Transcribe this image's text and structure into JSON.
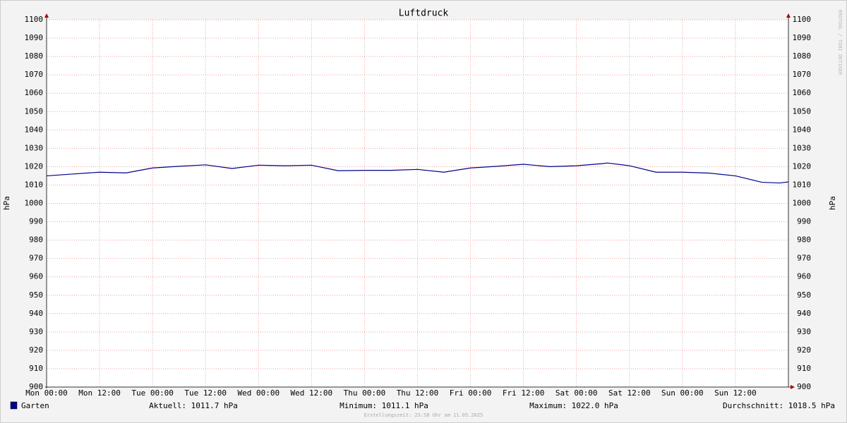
{
  "chart_data": {
    "type": "line",
    "title": "Luftdruck",
    "y_label": "hPa",
    "y2_label": "hPa",
    "x": [
      0,
      6,
      12,
      18,
      24,
      30,
      36,
      42,
      48,
      54,
      60,
      66,
      72,
      78,
      84,
      90,
      96,
      102,
      108,
      114,
      120,
      126,
      127,
      132,
      138,
      144,
      150,
      156,
      162,
      166,
      168
    ],
    "series": [
      {
        "name": "Garten",
        "color": "#00008b",
        "values": [
          1015.0,
          1016.0,
          1017.0,
          1016.6,
          1019.3,
          1020.2,
          1021.0,
          1019.0,
          1020.8,
          1020.5,
          1020.8,
          1017.8,
          1018.0,
          1018.0,
          1018.5,
          1017.0,
          1019.3,
          1020.2,
          1021.3,
          1020.0,
          1020.5,
          1021.7,
          1022.0,
          1020.5,
          1017.0,
          1017.0,
          1016.5,
          1015.0,
          1011.5,
          1011.1,
          1011.7
        ]
      }
    ],
    "xlim": [
      0,
      168
    ],
    "xticks": [
      {
        "value": 0,
        "label": "Mon 00:00"
      },
      {
        "value": 12,
        "label": "Mon 12:00"
      },
      {
        "value": 24,
        "label": "Tue 00:00"
      },
      {
        "value": 36,
        "label": "Tue 12:00"
      },
      {
        "value": 48,
        "label": "Wed 00:00"
      },
      {
        "value": 60,
        "label": "Wed 12:00"
      },
      {
        "value": 72,
        "label": "Thu 00:00"
      },
      {
        "value": 84,
        "label": "Thu 12:00"
      },
      {
        "value": 96,
        "label": "Fri 00:00"
      },
      {
        "value": 108,
        "label": "Fri 12:00"
      },
      {
        "value": 120,
        "label": "Sat 00:00"
      },
      {
        "value": 132,
        "label": "Sat 12:00"
      },
      {
        "value": 144,
        "label": "Sun 00:00"
      },
      {
        "value": 156,
        "label": "Sun 12:00"
      }
    ],
    "ylim": [
      900,
      1100
    ],
    "yticks": [
      900,
      910,
      920,
      930,
      940,
      950,
      960,
      970,
      980,
      990,
      1000,
      1010,
      1020,
      1030,
      1040,
      1050,
      1060,
      1070,
      1080,
      1090,
      1100
    ],
    "grid": true,
    "stats": [
      "Aktuell: 1011.7 hPa",
      "Minimum: 1011.1 hPa",
      "Maximum: 1022.0 hPa",
      "Durchschnitt: 1018.5 hPa"
    ],
    "watermark": "RRDTOOL / TOBI OETIKER",
    "footer": "Erstellungszeit: 23:58 Uhr am 11.05.2025"
  }
}
